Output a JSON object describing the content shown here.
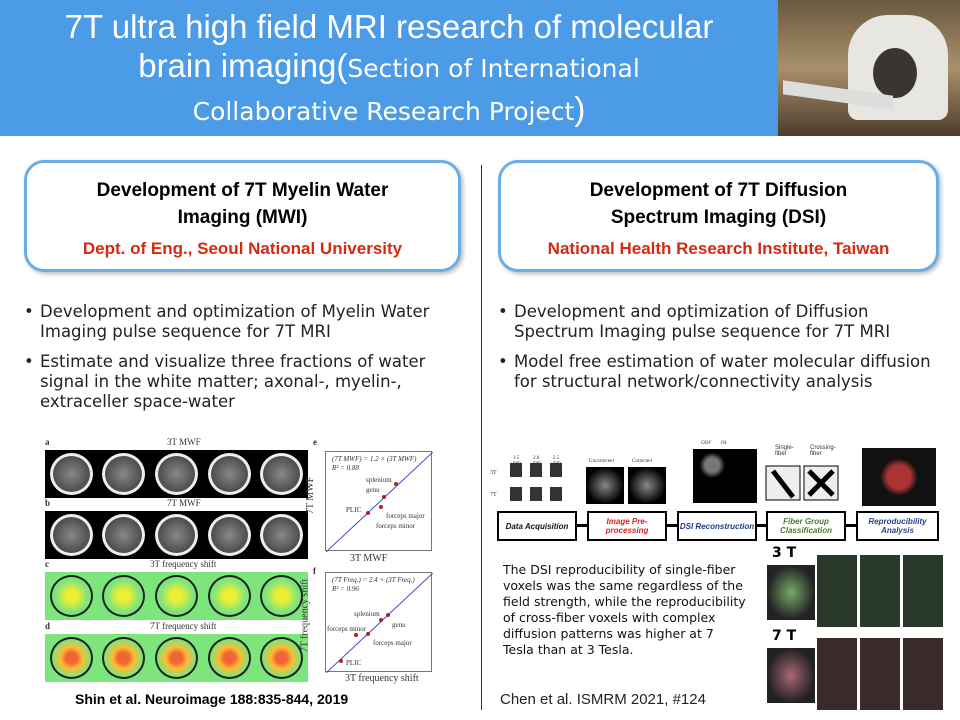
{
  "header": {
    "title_line1": "7T ultra high field MRI research of molecular",
    "title_line2_main": "brain imaging(",
    "title_line2_small": "Section of International",
    "title_line3_small": "Collaborative Research Project",
    "title_line3_close": ")"
  },
  "left": {
    "card_title": "Development of 7T Myelin Water Imaging (MWI)",
    "card_subtitle": "Dept. of Eng., Seoul National University",
    "bullets": [
      "Development and optimization of Myelin Water Imaging pulse sequence for 7T MRI",
      "Estimate and visualize three fractions of water signal in the white matter; axonal-, myelin-, extraceller space-water"
    ],
    "figure": {
      "panel_a": "a",
      "label_a": "3T MWF",
      "panel_b": "b",
      "label_b": "7T MWF",
      "panel_c": "c",
      "label_c": "3T frequency shift",
      "panel_d": "d",
      "label_d": "7T frequency shift",
      "panel_e": "e",
      "e_eq": "(7T MWF) = 1.2 × (3T MWF)",
      "e_r2": "R² = 0.88",
      "e_xlabel": "3T MWF",
      "e_ylabel": "7T MWF",
      "e_points": [
        "splenium",
        "genu",
        "PLIC",
        "forceps major",
        "forceps minor"
      ],
      "panel_f": "f",
      "f_eq": "(7T Freq.) = 2.4 × (3T Freq.)",
      "f_r2": "R² = 0.96",
      "f_xlabel": "3T frequency shift",
      "f_ylabel": "7T frequency shift",
      "f_points": [
        "splenium",
        "genu",
        "forceps minor",
        "forceps major",
        "PLIC"
      ]
    },
    "citation": "Shin et al. Neuroimage 188:835-844, 2019"
  },
  "right": {
    "card_title": "Development of 7T Diffusion Spectrum Imaging (DSI)",
    "card_subtitle": "National Health Research Institute, Taiwan",
    "bullets": [
      "Development and optimization of Diffusion Spectrum Imaging pulse sequence for 7T MRI",
      "Model free estimation of water molecular diffusion for structural network/connectivity analysis"
    ],
    "flow": {
      "steps": [
        "Data Acquisition",
        "Image Pre-processing",
        "DSI Reconstruction",
        "Fiber Group Classification",
        "Reproducibility Analysis"
      ],
      "step_colors": [
        "#111111",
        "#d42020",
        "#1f3a8a",
        "#4a7a2a",
        "#2a3f8a"
      ],
      "labels": {
        "res": [
          "1.5 mm",
          "2.0 mm",
          "2.5 mm"
        ],
        "uncorrected": "Uncorrected",
        "corrected": "Corrected",
        "odf": "ODF",
        "fa": "FA",
        "single": "Single-fiber",
        "crossing": "Crossing-fiber",
        "t3": "3T",
        "t7": "7T"
      }
    },
    "description": "The DSI reproducibility of single-fiber voxels was the same regardless of the field strength, while the reproducibility of cross-fiber voxels with complex diffusion patterns was higher at 7 Tesla than at 3 Tesla.",
    "label_3t": "3 T",
    "label_7t": "7 T",
    "citation": "Chen et al. ISMRM 2021, #124"
  },
  "colors": {
    "header_bg": "#4b9be6",
    "card_border": "#6aaee8",
    "subtitle": "#d42a12"
  }
}
